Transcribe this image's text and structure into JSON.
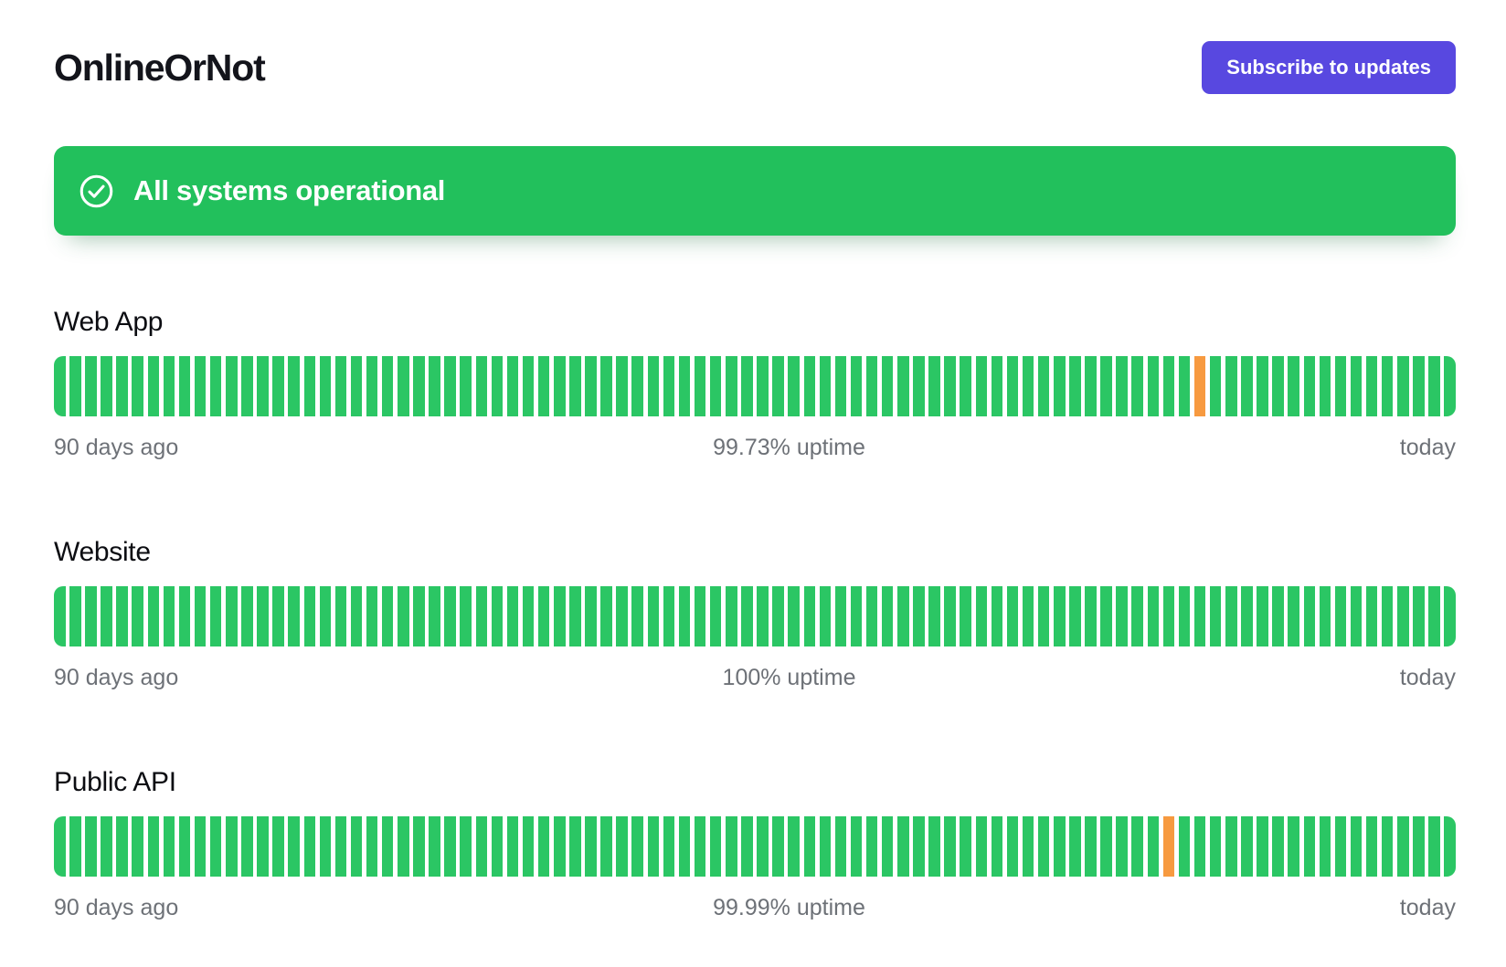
{
  "header": {
    "logo_text": "OnlineOrNot",
    "subscribe_button_label": "Subscribe to updates"
  },
  "status_banner": {
    "message": "All systems operational",
    "icon": "check-circle-icon",
    "background_color": "#22c05c",
    "text_color": "#ffffff"
  },
  "colors": {
    "bar_up": "#2bc664",
    "bar_degraded": "#f79a40",
    "button_background": "#5848e0",
    "caption_text": "#6d7177"
  },
  "services": [
    {
      "name": "Web App",
      "left_label": "90 days ago",
      "uptime_label": "99.73% uptime",
      "right_label": "today",
      "total_bars": 90,
      "degraded_bar_indices": [
        73
      ]
    },
    {
      "name": "Website",
      "left_label": "90 days ago",
      "uptime_label": "100% uptime",
      "right_label": "today",
      "total_bars": 90,
      "degraded_bar_indices": []
    },
    {
      "name": "Public API",
      "left_label": "90 days ago",
      "uptime_label": "99.99% uptime",
      "right_label": "today",
      "total_bars": 90,
      "degraded_bar_indices": [
        71
      ]
    }
  ]
}
